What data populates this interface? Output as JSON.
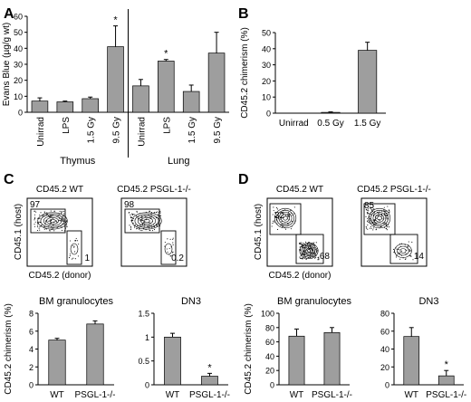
{
  "colors": {
    "bar": "#9e9e9e",
    "axis": "#000000",
    "contour": "#000000",
    "background": "#ffffff"
  },
  "panel_letters": {
    "a": "A",
    "b": "B",
    "c": "C",
    "d": "D"
  },
  "chart_data": [
    {
      "panel": "A",
      "type": "bar",
      "ylabel": "Evans Blue (µg/g wt)",
      "ylim": [
        0,
        60
      ],
      "yticks": [
        0,
        10,
        20,
        30,
        40,
        50,
        60
      ],
      "categories": [
        "Unirrad",
        "LPS",
        "1.5 Gy",
        "9.5 Gy",
        "Unirrad",
        "LPS",
        "1.5 Gy",
        "9.5 Gy"
      ],
      "groups": [
        {
          "label": "Thymus",
          "count": 4
        },
        {
          "label": "Lung",
          "count": 4
        }
      ],
      "values": [
        7,
        6.5,
        8.5,
        41,
        16.5,
        32,
        13,
        37
      ],
      "errors": [
        2,
        0.5,
        1,
        13,
        4,
        1,
        4,
        13
      ],
      "annotations": [
        "",
        "",
        "",
        "*",
        "",
        "*",
        "",
        ""
      ]
    },
    {
      "panel": "B",
      "type": "bar",
      "ylabel": "CD45.2 chimerism (%)",
      "ylim": [
        0,
        50
      ],
      "yticks": [
        0,
        10,
        20,
        30,
        40,
        50
      ],
      "categories": [
        "Unirrad",
        "0.5 Gy",
        "1.5 Gy"
      ],
      "values": [
        0,
        0.5,
        39
      ],
      "errors": [
        0,
        0.3,
        5
      ]
    },
    {
      "panel": "C",
      "type": "flow-cytometry",
      "ylabel": "CD45.1 (host)",
      "xlabel": "CD45.2 (donor)",
      "plots": [
        {
          "title": "CD45.2 WT",
          "gate_host": "97",
          "gate_donor": "1"
        },
        {
          "title": "CD45.2 PSGL-1-/-",
          "gate_host": "98",
          "gate_donor": "0.2"
        }
      ]
    },
    {
      "panel": "C-bars-left",
      "type": "bar",
      "title": "BM granulocytes",
      "ylabel": "CD45.2 chimerism (%)",
      "ylim": [
        0,
        8
      ],
      "yticks": [
        0,
        2,
        4,
        6,
        8
      ],
      "categories": [
        "WT",
        "PSGL-1-/-"
      ],
      "values": [
        5,
        6.8
      ],
      "errors": [
        0.2,
        0.35
      ],
      "annotations": [
        "",
        ""
      ]
    },
    {
      "panel": "C-bars-right",
      "type": "bar",
      "title": "DN3",
      "ylim": [
        0,
        1.5
      ],
      "yticks": [
        0,
        0.5,
        1,
        1.5
      ],
      "categories": [
        "WT",
        "PSGL-1-/-"
      ],
      "values": [
        1,
        0.18
      ],
      "errors": [
        0.08,
        0.06
      ],
      "annotations": [
        "",
        "*"
      ]
    },
    {
      "panel": "D",
      "type": "flow-cytometry",
      "ylabel": "CD45.1 (host)",
      "xlabel": "CD45.2 (donor)",
      "plots": [
        {
          "title": "CD45.2 WT",
          "gate_host": "32",
          "gate_donor": "68"
        },
        {
          "title": "CD45.2 PSGL-1-/-",
          "gate_host": "85",
          "gate_donor": "14"
        }
      ]
    },
    {
      "panel": "D-bars-left",
      "type": "bar",
      "title": "BM granulocytes",
      "ylabel": "CD45.2 chimerism (%)",
      "ylim": [
        0,
        100
      ],
      "yticks": [
        0,
        20,
        40,
        60,
        80,
        100
      ],
      "categories": [
        "WT",
        "PSGL-1-/-"
      ],
      "values": [
        68,
        73
      ],
      "errors": [
        10,
        7
      ],
      "annotations": [
        "",
        ""
      ]
    },
    {
      "panel": "D-bars-right",
      "type": "bar",
      "title": "DN3",
      "ylim": [
        0,
        80
      ],
      "yticks": [
        0,
        20,
        40,
        60,
        80
      ],
      "categories": [
        "WT",
        "PSGL-1-/-"
      ],
      "values": [
        54,
        10
      ],
      "errors": [
        10,
        6
      ],
      "annotations": [
        "",
        "*"
      ]
    }
  ]
}
